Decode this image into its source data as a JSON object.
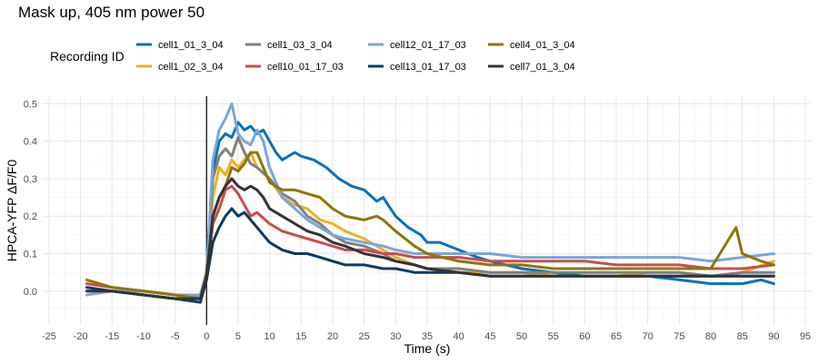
{
  "chart_data": {
    "type": "line",
    "title": "Mask up, 405 nm power 50",
    "xlabel": "Time (s)",
    "ylabel": "HPCA-YFP ΔF/F0",
    "xlim": [
      -26,
      96
    ],
    "ylim": [
      -0.09,
      0.52
    ],
    "xticks": [
      -25,
      -20,
      -15,
      -10,
      -5,
      0,
      5,
      10,
      15,
      20,
      25,
      30,
      35,
      40,
      45,
      50,
      55,
      60,
      65,
      70,
      75,
      80,
      85,
      90,
      95
    ],
    "yticks": [
      0.0,
      0.1,
      0.2,
      0.3,
      0.4,
      0.5
    ],
    "ytick_labels": [
      "0.0",
      "0.1",
      "0.2",
      "0.3",
      "0.4",
      "0.5"
    ],
    "grid": true,
    "vline_x": 0,
    "legend": {
      "title": "Recording ID",
      "placement": "top"
    },
    "series": [
      {
        "name": "cell1_01_3_04",
        "color": "#0072BD",
        "points": [
          [
            -19,
            0.0
          ],
          [
            -15,
            0.0
          ],
          [
            -10,
            -0.01
          ],
          [
            -5,
            -0.02
          ],
          [
            -1,
            -0.02
          ],
          [
            0,
            0.05
          ],
          [
            1,
            0.32
          ],
          [
            2,
            0.4
          ],
          [
            3,
            0.42
          ],
          [
            4,
            0.41
          ],
          [
            5,
            0.45
          ],
          [
            6,
            0.43
          ],
          [
            7,
            0.44
          ],
          [
            8,
            0.42
          ],
          [
            9,
            0.43
          ],
          [
            10,
            0.4
          ],
          [
            11,
            0.37
          ],
          [
            12,
            0.35
          ],
          [
            13,
            0.36
          ],
          [
            14,
            0.37
          ],
          [
            15,
            0.36
          ],
          [
            17,
            0.35
          ],
          [
            19,
            0.33
          ],
          [
            21,
            0.3
          ],
          [
            23,
            0.28
          ],
          [
            25,
            0.27
          ],
          [
            27,
            0.24
          ],
          [
            28,
            0.25
          ],
          [
            30,
            0.2
          ],
          [
            32,
            0.17
          ],
          [
            34,
            0.15
          ],
          [
            35,
            0.13
          ],
          [
            37,
            0.13
          ],
          [
            40,
            0.11
          ],
          [
            43,
            0.09
          ],
          [
            45,
            0.08
          ],
          [
            50,
            0.06
          ],
          [
            55,
            0.05
          ],
          [
            60,
            0.04
          ],
          [
            65,
            0.04
          ],
          [
            70,
            0.04
          ],
          [
            75,
            0.03
          ],
          [
            80,
            0.02
          ],
          [
            85,
            0.02
          ],
          [
            88,
            0.03
          ],
          [
            90,
            0.02
          ]
        ]
      },
      {
        "name": "cell1_02_3_04",
        "color": "#EDB120",
        "points": [
          [
            -19,
            0.02
          ],
          [
            -15,
            0.01
          ],
          [
            -10,
            0.0
          ],
          [
            -5,
            -0.01
          ],
          [
            -1,
            -0.02
          ],
          [
            0,
            0.04
          ],
          [
            1,
            0.25
          ],
          [
            2,
            0.33
          ],
          [
            3,
            0.31
          ],
          [
            4,
            0.35
          ],
          [
            5,
            0.33
          ],
          [
            6,
            0.35
          ],
          [
            7,
            0.37
          ],
          [
            8,
            0.33
          ],
          [
            10,
            0.3
          ],
          [
            12,
            0.25
          ],
          [
            14,
            0.23
          ],
          [
            16,
            0.22
          ],
          [
            18,
            0.19
          ],
          [
            20,
            0.18
          ],
          [
            22,
            0.16
          ],
          [
            25,
            0.14
          ],
          [
            28,
            0.11
          ],
          [
            30,
            0.09
          ],
          [
            33,
            0.07
          ],
          [
            35,
            0.06
          ],
          [
            40,
            0.05
          ],
          [
            45,
            0.05
          ],
          [
            50,
            0.05
          ],
          [
            55,
            0.04
          ],
          [
            60,
            0.04
          ],
          [
            65,
            0.04
          ],
          [
            70,
            0.05
          ],
          [
            75,
            0.05
          ],
          [
            80,
            0.04
          ],
          [
            85,
            0.05
          ],
          [
            90,
            0.08
          ]
        ]
      },
      {
        "name": "cell1_03_3_04",
        "color": "#808080",
        "points": [
          [
            -19,
            0.01
          ],
          [
            -15,
            0.0
          ],
          [
            -10,
            -0.01
          ],
          [
            -5,
            -0.02
          ],
          [
            -1,
            -0.01
          ],
          [
            0,
            0.05
          ],
          [
            1,
            0.3
          ],
          [
            2,
            0.36
          ],
          [
            3,
            0.38
          ],
          [
            4,
            0.36
          ],
          [
            5,
            0.41
          ],
          [
            6,
            0.37
          ],
          [
            7,
            0.34
          ],
          [
            8,
            0.33
          ],
          [
            10,
            0.3
          ],
          [
            12,
            0.26
          ],
          [
            14,
            0.24
          ],
          [
            16,
            0.2
          ],
          [
            18,
            0.18
          ],
          [
            20,
            0.15
          ],
          [
            22,
            0.13
          ],
          [
            25,
            0.12
          ],
          [
            28,
            0.1
          ],
          [
            30,
            0.08
          ],
          [
            33,
            0.07
          ],
          [
            35,
            0.06
          ],
          [
            40,
            0.06
          ],
          [
            45,
            0.05
          ],
          [
            50,
            0.05
          ],
          [
            55,
            0.05
          ],
          [
            60,
            0.05
          ],
          [
            65,
            0.05
          ],
          [
            70,
            0.05
          ],
          [
            75,
            0.05
          ],
          [
            80,
            0.04
          ],
          [
            85,
            0.05
          ],
          [
            90,
            0.05
          ]
        ]
      },
      {
        "name": "cell10_01_17_03",
        "color": "#CC4C4C",
        "points": [
          [
            -19,
            0.02
          ],
          [
            -15,
            0.01
          ],
          [
            -10,
            0.0
          ],
          [
            -5,
            -0.01
          ],
          [
            -1,
            -0.02
          ],
          [
            0,
            0.04
          ],
          [
            1,
            0.18
          ],
          [
            2,
            0.22
          ],
          [
            3,
            0.27
          ],
          [
            4,
            0.28
          ],
          [
            5,
            0.26
          ],
          [
            6,
            0.23
          ],
          [
            7,
            0.2
          ],
          [
            8,
            0.21
          ],
          [
            10,
            0.18
          ],
          [
            12,
            0.16
          ],
          [
            14,
            0.15
          ],
          [
            16,
            0.14
          ],
          [
            18,
            0.13
          ],
          [
            20,
            0.12
          ],
          [
            22,
            0.11
          ],
          [
            25,
            0.11
          ],
          [
            28,
            0.1
          ],
          [
            30,
            0.1
          ],
          [
            33,
            0.09
          ],
          [
            35,
            0.09
          ],
          [
            40,
            0.09
          ],
          [
            45,
            0.08
          ],
          [
            50,
            0.08
          ],
          [
            55,
            0.08
          ],
          [
            60,
            0.08
          ],
          [
            65,
            0.07
          ],
          [
            70,
            0.07
          ],
          [
            75,
            0.07
          ],
          [
            80,
            0.06
          ],
          [
            85,
            0.06
          ],
          [
            90,
            0.07
          ]
        ]
      },
      {
        "name": "cell12_01_17_03",
        "color": "#7BA6D8",
        "points": [
          [
            -19,
            -0.01
          ],
          [
            -15,
            0.0
          ],
          [
            -10,
            0.0
          ],
          [
            -5,
            -0.01
          ],
          [
            -1,
            -0.01
          ],
          [
            0,
            0.05
          ],
          [
            1,
            0.35
          ],
          [
            2,
            0.43
          ],
          [
            3,
            0.46
          ],
          [
            4,
            0.5
          ],
          [
            5,
            0.42
          ],
          [
            6,
            0.4
          ],
          [
            7,
            0.39
          ],
          [
            8,
            0.43
          ],
          [
            9,
            0.4
          ],
          [
            10,
            0.33
          ],
          [
            11,
            0.29
          ],
          [
            12,
            0.25
          ],
          [
            14,
            0.22
          ],
          [
            16,
            0.19
          ],
          [
            18,
            0.17
          ],
          [
            20,
            0.15
          ],
          [
            22,
            0.14
          ],
          [
            25,
            0.13
          ],
          [
            28,
            0.12
          ],
          [
            30,
            0.11
          ],
          [
            33,
            0.1
          ],
          [
            35,
            0.1
          ],
          [
            40,
            0.1
          ],
          [
            45,
            0.1
          ],
          [
            50,
            0.09
          ],
          [
            55,
            0.09
          ],
          [
            60,
            0.09
          ],
          [
            65,
            0.09
          ],
          [
            70,
            0.09
          ],
          [
            75,
            0.09
          ],
          [
            80,
            0.08
          ],
          [
            85,
            0.09
          ],
          [
            90,
            0.1
          ]
        ]
      },
      {
        "name": "cell13_01_17_03",
        "color": "#0B3A66",
        "points": [
          [
            -19,
            0.01
          ],
          [
            -15,
            0.0
          ],
          [
            -10,
            -0.01
          ],
          [
            -5,
            -0.02
          ],
          [
            -1,
            -0.03
          ],
          [
            0,
            0.03
          ],
          [
            1,
            0.13
          ],
          [
            2,
            0.17
          ],
          [
            3,
            0.2
          ],
          [
            4,
            0.22
          ],
          [
            5,
            0.2
          ],
          [
            6,
            0.21
          ],
          [
            7,
            0.19
          ],
          [
            8,
            0.17
          ],
          [
            9,
            0.15
          ],
          [
            10,
            0.13
          ],
          [
            12,
            0.11
          ],
          [
            14,
            0.1
          ],
          [
            16,
            0.1
          ],
          [
            18,
            0.09
          ],
          [
            20,
            0.08
          ],
          [
            22,
            0.07
          ],
          [
            25,
            0.07
          ],
          [
            28,
            0.06
          ],
          [
            30,
            0.06
          ],
          [
            33,
            0.05
          ],
          [
            35,
            0.05
          ],
          [
            40,
            0.05
          ],
          [
            45,
            0.04
          ],
          [
            50,
            0.04
          ],
          [
            55,
            0.04
          ],
          [
            60,
            0.04
          ],
          [
            65,
            0.04
          ],
          [
            70,
            0.04
          ],
          [
            75,
            0.04
          ],
          [
            80,
            0.04
          ],
          [
            85,
            0.04
          ],
          [
            90,
            0.04
          ]
        ]
      },
      {
        "name": "cell4_01_3_04",
        "color": "#8C7700",
        "points": [
          [
            -19,
            0.03
          ],
          [
            -15,
            0.01
          ],
          [
            -10,
            0.0
          ],
          [
            -5,
            -0.01
          ],
          [
            -1,
            -0.02
          ],
          [
            0,
            0.05
          ],
          [
            1,
            0.2
          ],
          [
            2,
            0.25
          ],
          [
            3,
            0.28
          ],
          [
            4,
            0.33
          ],
          [
            5,
            0.32
          ],
          [
            6,
            0.34
          ],
          [
            7,
            0.37
          ],
          [
            8,
            0.37
          ],
          [
            9,
            0.33
          ],
          [
            10,
            0.29
          ],
          [
            12,
            0.27
          ],
          [
            14,
            0.27
          ],
          [
            16,
            0.26
          ],
          [
            18,
            0.25
          ],
          [
            20,
            0.22
          ],
          [
            22,
            0.2
          ],
          [
            25,
            0.19
          ],
          [
            27,
            0.2
          ],
          [
            28,
            0.19
          ],
          [
            30,
            0.16
          ],
          [
            33,
            0.12
          ],
          [
            35,
            0.1
          ],
          [
            40,
            0.08
          ],
          [
            45,
            0.07
          ],
          [
            50,
            0.07
          ],
          [
            55,
            0.06
          ],
          [
            60,
            0.06
          ],
          [
            65,
            0.06
          ],
          [
            70,
            0.06
          ],
          [
            75,
            0.06
          ],
          [
            80,
            0.06
          ],
          [
            84,
            0.17
          ],
          [
            85,
            0.1
          ],
          [
            88,
            0.08
          ],
          [
            90,
            0.07
          ]
        ]
      },
      {
        "name": "cell7_01_3_04",
        "color": "#333333",
        "points": [
          [
            -19,
            0.0
          ],
          [
            -15,
            0.0
          ],
          [
            -10,
            -0.01
          ],
          [
            -5,
            -0.02
          ],
          [
            -1,
            -0.02
          ],
          [
            0,
            0.04
          ],
          [
            1,
            0.2
          ],
          [
            2,
            0.25
          ],
          [
            3,
            0.28
          ],
          [
            4,
            0.3
          ],
          [
            5,
            0.28
          ],
          [
            6,
            0.27
          ],
          [
            7,
            0.28
          ],
          [
            8,
            0.27
          ],
          [
            9,
            0.25
          ],
          [
            10,
            0.22
          ],
          [
            12,
            0.2
          ],
          [
            14,
            0.18
          ],
          [
            16,
            0.16
          ],
          [
            18,
            0.15
          ],
          [
            20,
            0.13
          ],
          [
            22,
            0.12
          ],
          [
            25,
            0.1
          ],
          [
            28,
            0.09
          ],
          [
            30,
            0.08
          ],
          [
            33,
            0.07
          ],
          [
            35,
            0.06
          ],
          [
            40,
            0.05
          ],
          [
            45,
            0.04
          ],
          [
            50,
            0.04
          ],
          [
            55,
            0.04
          ],
          [
            60,
            0.04
          ],
          [
            65,
            0.04
          ],
          [
            70,
            0.04
          ],
          [
            75,
            0.04
          ],
          [
            80,
            0.04
          ],
          [
            85,
            0.04
          ],
          [
            90,
            0.04
          ]
        ]
      }
    ]
  }
}
